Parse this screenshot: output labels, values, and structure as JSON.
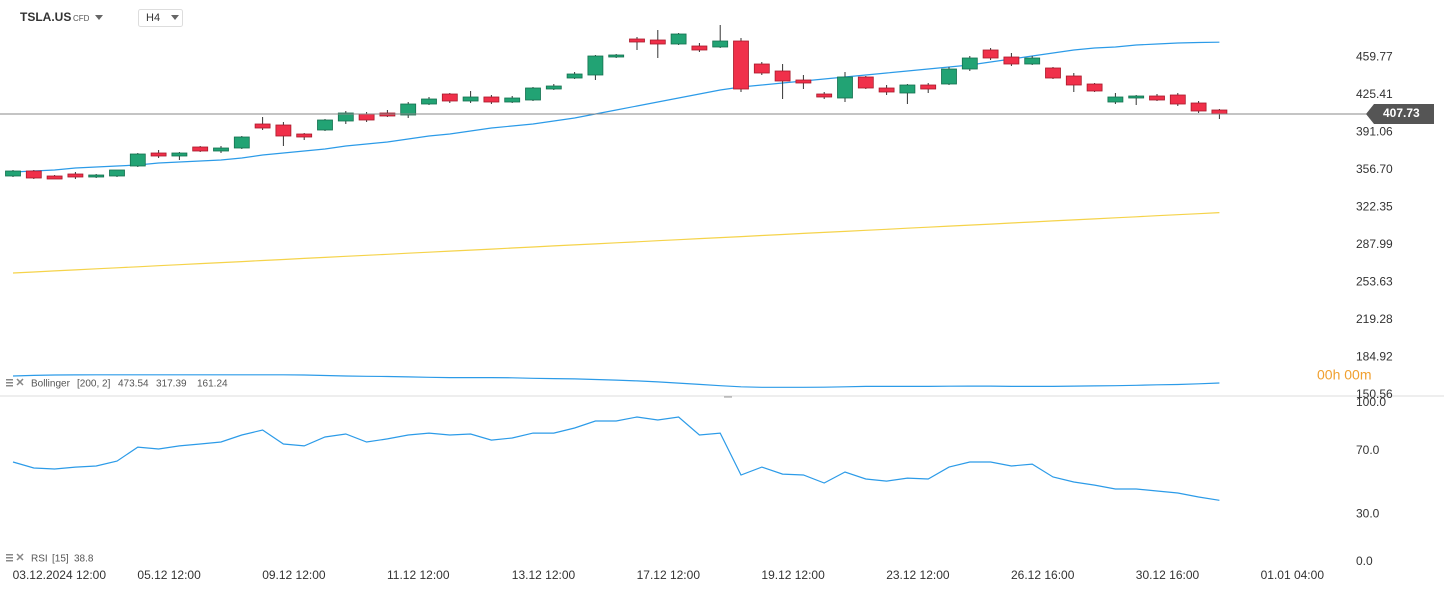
{
  "header": {
    "symbol": "TSLA.US",
    "instrument": "CFD",
    "timeframe": "H4",
    "countdown": "00h 00m"
  },
  "chart_data": [
    {
      "type": "candlestick",
      "categories": [
        null,
        null,
        "03.12.2024 12:00",
        null,
        null,
        null,
        null,
        null,
        "05.12 12:00",
        null,
        null,
        null,
        null,
        null,
        "09.12 12:00",
        null,
        null,
        null,
        null,
        null,
        "11.12 12:00",
        null,
        null,
        null,
        null,
        null,
        "13.12 12:00",
        null,
        null,
        null,
        null,
        null,
        "17.12 12:00",
        null,
        null,
        null,
        null,
        null,
        "19.12 12:00",
        null,
        null,
        null,
        null,
        null,
        "23.12 12:00",
        null,
        null,
        null,
        null,
        null,
        "26.12 16:00",
        null,
        null,
        null,
        null,
        null,
        "30.12 16:00",
        null,
        null,
        null,
        null,
        null,
        "01.01 04:00"
      ],
      "open": [
        350.93,
        355.51,
        350.93,
        352.76,
        350.01,
        350.93,
        360.09,
        372.0,
        369.25,
        377.5,
        373.83,
        376.58,
        398.57,
        397.65,
        389.41,
        393.07,
        401.32,
        407.73,
        408.65,
        406.81,
        416.89,
        426.05,
        419.64,
        423.31,
        418.72,
        420.56,
        430.64,
        440.71,
        443.46,
        459.95,
        476.45,
        475.53,
        471.86,
        470.03,
        469.12,
        474.61,
        453.54,
        447.13,
        438.88,
        426.05,
        422.39,
        441.63,
        431.55,
        426.97,
        434.3,
        435.22,
        448.96,
        466.37,
        459.95,
        453.54,
        449.88,
        442.55,
        435.22,
        418.72,
        422.39,
        424.22,
        425.14,
        417.81,
        411.39,
        null,
        null,
        null,
        null
      ],
      "high": [
        356.42,
        356.42,
        351.84,
        354.59,
        352.76,
        356.42,
        372.0,
        374.75,
        372.91,
        378.41,
        378.41,
        387.57,
        404.98,
        400.4,
        390.32,
        403.15,
        410.48,
        409.56,
        411.39,
        418.72,
        423.31,
        426.97,
        428.8,
        425.14,
        424.22,
        432.47,
        435.22,
        446.21,
        461.79,
        462.7,
        478.28,
        484.69,
        481.94,
        472.78,
        489.27,
        477.36,
        455.37,
        453.54,
        443.46,
        427.89,
        446.21,
        442.55,
        434.3,
        435.22,
        436.13,
        450.79,
        460.87,
        468.2,
        463.62,
        460.87,
        450.79,
        445.29,
        436.13,
        426.97,
        425.14,
        426.05,
        426.97,
        419.64,
        412.31,
        null,
        null,
        null,
        null
      ],
      "low": [
        350.01,
        348.18,
        348.18,
        348.18,
        349.09,
        350.01,
        359.17,
        367.42,
        365.58,
        372.91,
        372.0,
        375.66,
        393.07,
        378.41,
        383.91,
        392.15,
        398.57,
        400.4,
        404.98,
        404.07,
        415.98,
        417.81,
        417.81,
        416.89,
        417.81,
        419.64,
        429.72,
        439.8,
        438.88,
        459.04,
        466.37,
        459.04,
        470.95,
        464.53,
        468.2,
        427.89,
        443.46,
        421.47,
        430.64,
        421.47,
        418.72,
        430.64,
        425.14,
        416.89,
        426.97,
        434.3,
        447.13,
        457.2,
        451.71,
        452.62,
        439.8,
        427.89,
        427.89,
        416.89,
        415.98,
        419.64,
        415.06,
        408.65,
        403.15,
        null,
        null,
        null,
        null
      ],
      "close": [
        355.51,
        349.09,
        348.18,
        350.01,
        351.84,
        356.42,
        371.08,
        369.25,
        372.0,
        373.83,
        376.58,
        386.66,
        394.9,
        387.57,
        386.66,
        402.23,
        408.65,
        402.23,
        405.9,
        416.89,
        421.47,
        419.64,
        423.31,
        418.72,
        422.39,
        431.55,
        433.38,
        444.38,
        460.87,
        461.79,
        473.7,
        471.86,
        481.03,
        466.37,
        474.61,
        430.64,
        445.29,
        437.96,
        436.13,
        423.31,
        441.63,
        431.55,
        427.89,
        434.3,
        430.64,
        448.96,
        459.04,
        459.04,
        453.54,
        459.04,
        440.71,
        434.3,
        428.8,
        423.31,
        424.22,
        420.56,
        416.89,
        410.48,
        407.73,
        null,
        null,
        null,
        null
      ],
      "up_color": "#22a374",
      "down_color": "#f0304a",
      "bands": [
        {
          "color": "#2c9be8",
          "values": [
            354.59,
            355.51,
            356.42,
            358.26,
            359.17,
            360.09,
            361.0,
            362.84,
            363.75,
            364.67,
            365.58,
            367.42,
            370.17,
            372.0,
            373.83,
            375.66,
            378.41,
            380.24,
            382.08,
            384.82,
            387.57,
            389.41,
            392.15,
            394.9,
            396.74,
            398.57,
            401.32,
            404.07,
            407.73,
            411.39,
            415.06,
            418.72,
            422.39,
            426.05,
            429.72,
            432.47,
            434.3,
            436.13,
            437.96,
            439.8,
            441.63,
            443.46,
            445.29,
            447.13,
            448.96,
            450.79,
            452.62,
            455.37,
            458.12,
            460.87,
            463.62,
            466.37,
            468.2,
            469.12,
            470.95,
            471.86,
            472.78,
            473.2,
            473.54,
            null,
            null,
            null,
            null
          ]
        },
        {
          "color": "#f5d34a",
          "values": [
            262.05,
            263.0,
            263.96,
            264.91,
            265.87,
            266.82,
            267.77,
            268.73,
            269.68,
            270.64,
            271.59,
            272.54,
            273.5,
            274.45,
            275.41,
            276.36,
            277.31,
            278.27,
            279.22,
            280.18,
            281.13,
            282.08,
            283.04,
            283.99,
            284.95,
            285.9,
            286.85,
            287.81,
            288.76,
            289.72,
            290.67,
            291.62,
            292.58,
            293.53,
            294.49,
            295.44,
            296.39,
            297.35,
            298.3,
            299.26,
            300.21,
            301.16,
            302.12,
            303.07,
            304.03,
            304.98,
            305.93,
            306.89,
            307.84,
            308.8,
            309.75,
            310.7,
            311.66,
            312.61,
            313.57,
            314.52,
            315.47,
            316.43,
            317.39,
            null,
            null,
            null,
            null
          ]
        },
        {
          "color": "#2c9be8",
          "values": [
            167.7,
            168.2,
            168.6,
            168.7,
            168.8,
            168.8,
            168.8,
            168.8,
            168.8,
            168.8,
            168.8,
            168.8,
            168.8,
            168.8,
            168.6,
            168.1,
            167.7,
            167.4,
            167.2,
            166.9,
            166.5,
            166.2,
            166.2,
            166.2,
            166.0,
            165.6,
            165.3,
            165.0,
            164.5,
            163.9,
            163.2,
            162.3,
            161.2,
            160.0,
            158.8,
            157.8,
            157.3,
            157.3,
            157.3,
            157.4,
            157.8,
            158.2,
            158.2,
            158.2,
            158.2,
            158.3,
            158.4,
            158.4,
            158.2,
            158.2,
            158.2,
            158.4,
            158.6,
            158.8,
            159.2,
            159.6,
            159.9,
            160.5,
            161.24,
            null,
            null,
            null,
            null
          ]
        }
      ],
      "indicator": "Bollinger",
      "indicator_params": "[200, 2]",
      "last_price": 407.73,
      "last_price_line_color": "#888888",
      "ylim": [
        149.36,
        512.18
      ],
      "yticks": [
        459.77,
        425.41,
        391.06,
        {
          "value": 356.7,
          "label": "356.70"
        },
        322.35,
        287.99,
        253.63,
        219.28,
        184.92,
        150.56
      ]
    },
    {
      "type": "line",
      "name": "RSI",
      "params": "[15]",
      "color": "#2c9be8",
      "values": [
        62.9,
        59.1,
        58.5,
        59.7,
        60.4,
        63.5,
        72.3,
        71.1,
        73.0,
        74.2,
        75.5,
        79.9,
        83.0,
        74.2,
        73.0,
        78.6,
        80.5,
        75.5,
        77.4,
        79.9,
        81.1,
        79.9,
        80.5,
        76.7,
        78.0,
        81.1,
        81.1,
        84.3,
        88.7,
        88.7,
        91.2,
        89.3,
        91.2,
        79.9,
        81.1,
        54.7,
        59.7,
        55.3,
        54.7,
        49.7,
        56.6,
        52.2,
        50.9,
        52.8,
        52.2,
        59.7,
        62.9,
        62.9,
        60.4,
        61.6,
        53.5,
        50.3,
        48.4,
        45.9,
        45.9,
        44.7,
        43.4,
        40.9,
        38.8,
        null,
        null,
        null,
        null
      ],
      "ylim": [
        -5,
        104.4
      ],
      "yticks": [
        {
          "value": 100,
          "label": "100.0"
        },
        {
          "value": 70,
          "label": "70.0"
        },
        {
          "value": 30,
          "label": "30.0"
        },
        {
          "value": 0,
          "label": "0.0"
        }
      ]
    }
  ]
}
